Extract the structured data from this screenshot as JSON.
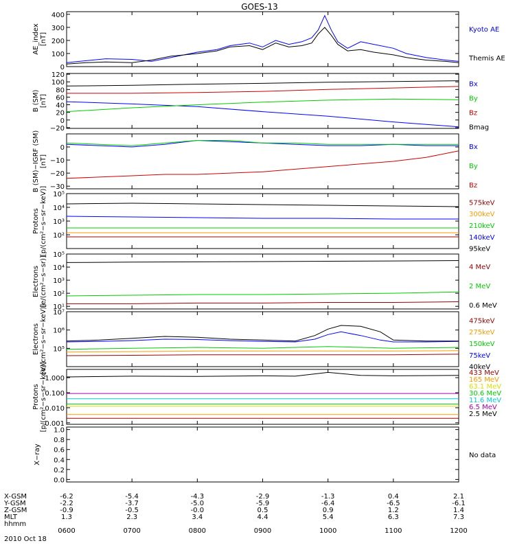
{
  "title": "GOES-13",
  "x_ticks": [
    "0600",
    "0700",
    "0800",
    "0900",
    "1000",
    "1100",
    "1200"
  ],
  "date": "2010 Oct 18",
  "ephemeris": [
    {
      "label": "X-GSM",
      "values": [
        "-6.2",
        "-5.4",
        "-4.3",
        "-2.9",
        "-1.3",
        "0.4",
        "2.1"
      ]
    },
    {
      "label": "Y-GSM",
      "values": [
        "-2.2",
        "-3.7",
        "-5.0",
        "-5.9",
        "-6.4",
        "-6.5",
        "-6.1"
      ]
    },
    {
      "label": "Z-GSM",
      "values": [
        "-0.9",
        "-0.5",
        "-0.0",
        "0.5",
        "0.9",
        "1.2",
        "1.4"
      ]
    },
    {
      "label": "MLT",
      "values": [
        "1.3",
        "2.3",
        "3.4",
        "4.4",
        "5.4",
        "6.3",
        "7.3"
      ]
    },
    {
      "label": "hhmm",
      "values": []
    }
  ],
  "colors": {
    "black": "#000000",
    "blue": "#0000ff",
    "green": "#00cc00",
    "red": "#cc0000",
    "orange": "#ff9900",
    "yellow": "#dddd00",
    "cyan": "#00cccc",
    "purple": "#aa00aa",
    "brown": "#990000"
  },
  "chart_data": [
    {
      "type": "line",
      "ylabel": "AE_index\n[nT]",
      "scale": "linear",
      "ylim": [
        0,
        420
      ],
      "yticks": [
        {
          "v": 0,
          "t": "0"
        },
        {
          "v": 100,
          "t": "100"
        },
        {
          "v": 200,
          "t": "200"
        },
        {
          "v": 300,
          "t": "300"
        },
        {
          "v": 400,
          "t": "400"
        }
      ],
      "series": [
        {
          "name": "Kyoto AE",
          "color": "blue",
          "x": [
            6,
            6.3,
            6.6,
            7,
            7.3,
            7.6,
            8,
            8.3,
            8.5,
            8.8,
            9,
            9.2,
            9.4,
            9.6,
            9.75,
            9.85,
            9.95,
            10.05,
            10.15,
            10.3,
            10.5,
            10.7,
            11,
            11.2,
            11.5,
            11.8,
            12
          ],
          "y": [
            30,
            45,
            60,
            55,
            40,
            70,
            110,
            130,
            160,
            180,
            150,
            200,
            170,
            190,
            220,
            280,
            390,
            280,
            190,
            140,
            190,
            170,
            140,
            100,
            70,
            50,
            40
          ]
        },
        {
          "name": "Themis AE",
          "color": "black",
          "x": [
            6,
            6.3,
            6.6,
            7,
            7.3,
            7.6,
            8,
            8.3,
            8.5,
            8.8,
            9,
            9.2,
            9.4,
            9.6,
            9.75,
            9.85,
            9.95,
            10.05,
            10.15,
            10.3,
            10.5,
            10.7,
            11,
            11.2,
            11.5,
            11.8,
            12
          ],
          "y": [
            20,
            30,
            35,
            30,
            50,
            80,
            100,
            120,
            150,
            160,
            130,
            180,
            150,
            160,
            180,
            250,
            300,
            240,
            170,
            120,
            130,
            110,
            90,
            70,
            50,
            40,
            30
          ]
        }
      ]
    },
    {
      "type": "line",
      "ylabel": "B (SM)\n[nT]",
      "scale": "linear",
      "ylim": [
        -22,
        122
      ],
      "yticks": [
        {
          "v": -20,
          "t": "−20"
        },
        {
          "v": 0,
          "t": "0"
        },
        {
          "v": 20,
          "t": "20"
        },
        {
          "v": 40,
          "t": "40"
        },
        {
          "v": 60,
          "t": "60"
        },
        {
          "v": 80,
          "t": "80"
        },
        {
          "v": 100,
          "t": "100"
        },
        {
          "v": 120,
          "t": "120"
        }
      ],
      "series": [
        {
          "name": "Bx",
          "color": "blue",
          "x": [
            6,
            7,
            8,
            9,
            10,
            11,
            12
          ],
          "y": [
            48,
            42,
            35,
            22,
            10,
            -5,
            -18
          ]
        },
        {
          "name": "By",
          "color": "green",
          "x": [
            6,
            7,
            8,
            9,
            10,
            11,
            12
          ],
          "y": [
            22,
            32,
            40,
            47,
            52,
            55,
            53
          ]
        },
        {
          "name": "Bz",
          "color": "red",
          "x": [
            6,
            7,
            8,
            9,
            10,
            11,
            12
          ],
          "y": [
            70,
            70,
            72,
            75,
            80,
            84,
            88
          ]
        },
        {
          "name": "Bmag",
          "color": "black",
          "x": [
            6,
            7,
            8,
            9,
            10,
            11,
            12
          ],
          "y": [
            89,
            91,
            94,
            96,
            99,
            101,
            103
          ]
        }
      ]
    },
    {
      "type": "line",
      "ylabel": "B (SM)−IGRF (SM)\n[nT]",
      "scale": "linear",
      "ylim": [
        -32,
        10
      ],
      "yticks": [
        {
          "v": -30,
          "t": "−30"
        },
        {
          "v": -20,
          "t": "−20"
        },
        {
          "v": -10,
          "t": "−10"
        },
        {
          "v": 0,
          "t": "0"
        }
      ],
      "series": [
        {
          "name": "Bx",
          "color": "blue",
          "x": [
            6,
            6.5,
            7,
            7.5,
            8,
            8.5,
            9,
            9.5,
            10,
            10.5,
            11,
            11.5,
            12
          ],
          "y": [
            2,
            1,
            0,
            2,
            5,
            4,
            3,
            2,
            1,
            1,
            2,
            1,
            1
          ]
        },
        {
          "name": "By",
          "color": "green",
          "x": [
            6,
            6.5,
            7,
            7.5,
            8,
            8.5,
            9,
            9.5,
            10,
            10.5,
            11,
            11.5,
            12
          ],
          "y": [
            3,
            2,
            1,
            3,
            5,
            5,
            3,
            3,
            2,
            2,
            2,
            2,
            2
          ]
        },
        {
          "name": "Bz",
          "color": "red",
          "x": [
            6,
            6.5,
            7,
            7.5,
            8,
            8.5,
            9,
            9.5,
            10,
            10.5,
            11,
            11.5,
            12
          ],
          "y": [
            -24,
            -23,
            -22,
            -21,
            -21,
            -20,
            -19,
            -17,
            -15,
            -13,
            -11,
            -8,
            -3
          ]
        }
      ]
    },
    {
      "type": "line",
      "ylabel": "Protons\n[p/(cm²−s−sr−keV)]",
      "scale": "log",
      "ylim": [
        1,
        5
      ],
      "yticks": [
        {
          "v": 2,
          "t": "10²"
        },
        {
          "v": 3,
          "t": "10³"
        },
        {
          "v": 4,
          "t": "10⁴"
        },
        {
          "v": 5,
          "t": "10⁵"
        }
      ],
      "series": [
        {
          "name": "575keV",
          "color": "brown",
          "x": [
            6,
            7,
            8,
            9,
            10,
            11,
            12
          ],
          "y": [
            1.85,
            1.85,
            1.85,
            1.85,
            1.85,
            1.85,
            1.85
          ]
        },
        {
          "name": "300keV",
          "color": "orange",
          "x": [
            6,
            7,
            8,
            9,
            10,
            11,
            12
          ],
          "y": [
            2.15,
            2.15,
            2.15,
            2.15,
            2.15,
            2.15,
            2.15
          ]
        },
        {
          "name": "210keV",
          "color": "green",
          "x": [
            6,
            7,
            8,
            9,
            10,
            11,
            12
          ],
          "y": [
            2.5,
            2.5,
            2.5,
            2.5,
            2.5,
            2.5,
            2.5
          ]
        },
        {
          "name": "140keV",
          "color": "blue",
          "x": [
            6,
            7,
            8,
            9,
            10,
            11,
            12
          ],
          "y": [
            3.35,
            3.3,
            3.25,
            3.2,
            3.2,
            3.15,
            3.15
          ]
        },
        {
          "name": "95keV",
          "color": "black",
          "x": [
            6,
            7,
            8,
            9,
            10,
            11,
            12
          ],
          "y": [
            4.25,
            4.3,
            4.25,
            4.2,
            4.15,
            4.1,
            4.05
          ]
        }
      ]
    },
    {
      "type": "line",
      "ylabel": "Electrons\n[e/(cm²−s−sr)]",
      "scale": "log",
      "ylim": [
        0.8,
        5
      ],
      "yticks": [
        {
          "v": 1,
          "t": "10¹"
        },
        {
          "v": 2,
          "t": "10²"
        },
        {
          "v": 3,
          "t": "10³"
        },
        {
          "v": 4,
          "t": "10⁴"
        },
        {
          "v": 5,
          "t": "10⁵"
        }
      ],
      "series": [
        {
          "name": "4 MeV",
          "color": "brown",
          "x": [
            6,
            7,
            8,
            9,
            10,
            11,
            12
          ],
          "y": [
            1.2,
            1.2,
            1.25,
            1.25,
            1.3,
            1.3,
            1.35
          ]
        },
        {
          "name": "2 MeV",
          "color": "green",
          "x": [
            6,
            7,
            8,
            9,
            10,
            11,
            12
          ],
          "y": [
            1.8,
            1.85,
            1.9,
            1.9,
            1.95,
            2.0,
            2.1
          ]
        },
        {
          "name": "0.6 MeV",
          "color": "black",
          "x": [
            6,
            7,
            8,
            9,
            10,
            11,
            12
          ],
          "y": [
            4.35,
            4.38,
            4.4,
            4.42,
            4.45,
            4.47,
            4.5
          ]
        }
      ]
    },
    {
      "type": "line",
      "ylabel": "Electrons\n[e/(cm²−s−sr−keV)]",
      "scale": "log",
      "ylim": [
        4,
        7
      ],
      "yticks": [
        {
          "v": 5,
          "t": "10⁵"
        },
        {
          "v": 6,
          "t": "10⁶"
        },
        {
          "v": 7,
          "t": "10⁷"
        }
      ],
      "series": [
        {
          "name": "475keV",
          "color": "brown",
          "x": [
            6,
            7,
            8,
            9,
            10,
            11,
            12
          ],
          "y": [
            4.6,
            4.62,
            4.65,
            4.65,
            4.65,
            4.65,
            4.68
          ]
        },
        {
          "name": "275keV",
          "color": "orange",
          "x": [
            6,
            7,
            8,
            9,
            10,
            11,
            12
          ],
          "y": [
            4.8,
            4.82,
            4.85,
            4.85,
            4.85,
            4.85,
            4.87
          ]
        },
        {
          "name": "150keV",
          "color": "green",
          "x": [
            6,
            7,
            8,
            9,
            10,
            11,
            12
          ],
          "y": [
            4.95,
            5.0,
            5.05,
            5.0,
            5.1,
            5.0,
            5.05
          ]
        },
        {
          "name": "75keV",
          "color": "blue",
          "x": [
            6,
            6.5,
            7,
            7.5,
            8,
            8.5,
            9,
            9.5,
            9.8,
            10,
            10.2,
            10.5,
            10.8,
            11,
            11.5,
            12
          ],
          "y": [
            5.35,
            5.38,
            5.42,
            5.5,
            5.48,
            5.42,
            5.38,
            5.35,
            5.5,
            5.75,
            5.9,
            5.7,
            5.45,
            5.35,
            5.35,
            5.38
          ]
        },
        {
          "name": "40keV",
          "color": "black",
          "x": [
            6,
            6.5,
            7,
            7.5,
            8,
            8.5,
            9,
            9.5,
            9.8,
            10,
            10.2,
            10.5,
            10.8,
            11,
            11.5,
            12
          ],
          "y": [
            5.4,
            5.45,
            5.55,
            5.65,
            5.6,
            5.5,
            5.45,
            5.4,
            5.7,
            6.05,
            6.25,
            6.2,
            5.9,
            5.45,
            5.4,
            5.4
          ]
        }
      ]
    },
    {
      "type": "line",
      "ylabel": "Protons\n[p/(cm²−s−sr−keV)]",
      "scale": "log",
      "ylim": [
        -3.1,
        0.55
      ],
      "yticks": [
        {
          "v": -3,
          "t": "0.001"
        },
        {
          "v": -2,
          "t": "0.010"
        },
        {
          "v": -1,
          "t": "0.100"
        },
        {
          "v": 0,
          "t": "1.000"
        }
      ],
      "series": [
        {
          "name": "433 MeV",
          "color": "brown",
          "x": [
            6,
            12
          ],
          "y": [
            -2.7,
            -2.7
          ]
        },
        {
          "name": "165 MeV",
          "color": "orange",
          "x": [
            6,
            12
          ],
          "y": [
            -2.45,
            -2.45
          ]
        },
        {
          "name": "63.1 MeV",
          "color": "yellow",
          "x": [
            6,
            12
          ],
          "y": [
            -1.9,
            -1.9
          ]
        },
        {
          "name": "30.6 MeV",
          "color": "green",
          "x": [
            6,
            12
          ],
          "y": [
            -1.75,
            -1.75
          ]
        },
        {
          "name": "11.6 MeV",
          "color": "cyan",
          "x": [
            6,
            12
          ],
          "y": [
            -1.4,
            -1.4
          ]
        },
        {
          "name": "6.5 MeV",
          "color": "purple",
          "x": [
            6,
            12
          ],
          "y": [
            -1.05,
            -1.05
          ]
        },
        {
          "name": "2.5 MeV",
          "color": "black",
          "x": [
            6,
            7,
            8,
            9,
            9.5,
            10,
            10.5,
            11,
            12
          ],
          "y": [
            0.05,
            0.1,
            0.08,
            0.12,
            0.1,
            0.35,
            0.15,
            0.12,
            0.15
          ]
        }
      ]
    },
    {
      "type": "line",
      "ylabel": "X−ray",
      "scale": "linear",
      "ylim": [
        -0.05,
        1.05
      ],
      "yticks": [
        {
          "v": 0,
          "t": "0.0"
        },
        {
          "v": 0.2,
          "t": "0.2"
        },
        {
          "v": 0.4,
          "t": "0.4"
        },
        {
          "v": 0.6,
          "t": "0.6"
        },
        {
          "v": 0.8,
          "t": "0.8"
        },
        {
          "v": 1,
          "t": "1.0"
        }
      ],
      "series": [],
      "note": "No data"
    }
  ]
}
